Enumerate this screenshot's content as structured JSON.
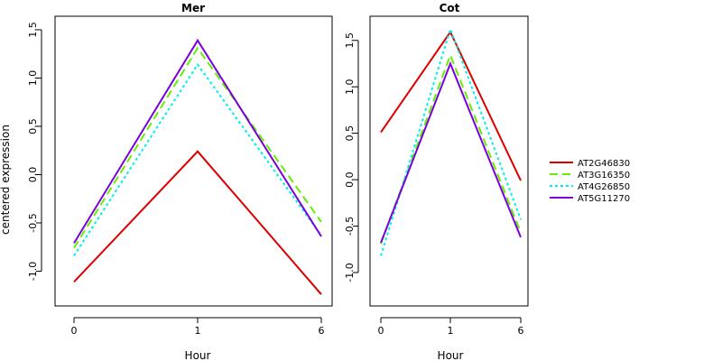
{
  "chart_data": {
    "type": "line",
    "ylabel": "centered expression",
    "x_ticks": [
      "0",
      "1",
      "6"
    ],
    "y_ticks": [
      "-1.0",
      "-0.5",
      "0.0",
      "0.5",
      "1.0",
      "1.5"
    ],
    "y_tick_values": [
      -1.0,
      -0.5,
      0.0,
      0.5,
      1.0,
      1.5
    ],
    "legend_position": "right",
    "grid": false,
    "legend": [
      {
        "name": "AT2G46830",
        "color": "#dd0000",
        "dash": "solid"
      },
      {
        "name": "AT3G16350",
        "color": "#66ee00",
        "dash": "dashed"
      },
      {
        "name": "AT4G26850",
        "color": "#00eeee",
        "dash": "dotted"
      },
      {
        "name": "AT5G11270",
        "color": "#7a00dd",
        "dash": "solid"
      }
    ],
    "panels": [
      {
        "title": "Mer",
        "xlabel": "Hour",
        "ylim": [
          -1.36,
          1.64
        ],
        "series": [
          {
            "name": "AT2G46830",
            "values": [
              -1.11,
              0.24,
              -1.24
            ]
          },
          {
            "name": "AT3G16350",
            "values": [
              -0.76,
              1.31,
              -0.49
            ]
          },
          {
            "name": "AT4G26850",
            "values": [
              -0.84,
              1.14,
              -0.63
            ]
          },
          {
            "name": "AT5G11270",
            "values": [
              -0.71,
              1.39,
              -0.64
            ]
          }
        ]
      },
      {
        "title": "Cot",
        "xlabel": "Hour",
        "ylim": [
          -1.36,
          1.76
        ],
        "series": [
          {
            "name": "AT2G46830",
            "values": [
              0.51,
              1.59,
              -0.01
            ]
          },
          {
            "name": "AT3G16350",
            "values": [
              -0.69,
              1.34,
              -0.57
            ]
          },
          {
            "name": "AT4G26850",
            "values": [
              -0.82,
              1.62,
              -0.43
            ]
          },
          {
            "name": "AT5G11270",
            "values": [
              -0.68,
              1.25,
              -0.62
            ]
          }
        ]
      }
    ]
  }
}
